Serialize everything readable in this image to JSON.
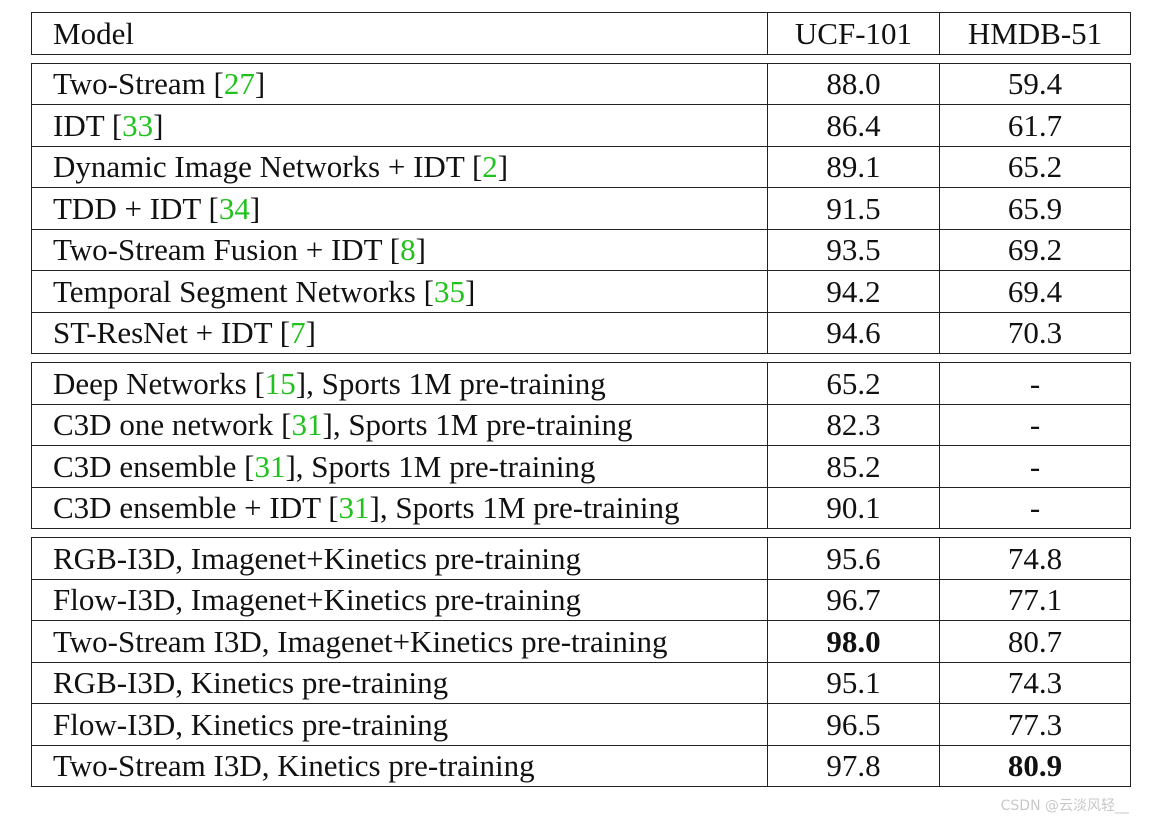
{
  "table": {
    "header": {
      "model": "Model",
      "ucf": "UCF-101",
      "hmdb": "HMDB-51"
    },
    "groups": [
      [
        {
          "model": "Two-Stream ",
          "ref": "27",
          "suffix": "",
          "ucf": "88.0",
          "hmdb": "59.4"
        },
        {
          "model": "IDT ",
          "ref": "33",
          "suffix": "",
          "ucf": "86.4",
          "hmdb": "61.7"
        },
        {
          "model": "Dynamic Image Networks + IDT ",
          "ref": "2",
          "suffix": "",
          "ucf": "89.1",
          "hmdb": "65.2"
        },
        {
          "model": "TDD + IDT ",
          "ref": "34",
          "suffix": "",
          "ucf": "91.5",
          "hmdb": "65.9"
        },
        {
          "model": "Two-Stream Fusion + IDT ",
          "ref": "8",
          "suffix": "",
          "ucf": "93.5",
          "hmdb": "69.2"
        },
        {
          "model": "Temporal Segment Networks ",
          "ref": "35",
          "suffix": "",
          "ucf": "94.2",
          "hmdb": "69.4"
        },
        {
          "model": "ST-ResNet + IDT ",
          "ref": "7",
          "suffix": "",
          "ucf": "94.6",
          "hmdb": "70.3"
        }
      ],
      [
        {
          "model": "Deep Networks ",
          "ref": "15",
          "suffix": ", Sports 1M pre-training",
          "ucf": "65.2",
          "hmdb": "-"
        },
        {
          "model": "C3D one network ",
          "ref": "31",
          "suffix": ", Sports 1M pre-training",
          "ucf": "82.3",
          "hmdb": "-"
        },
        {
          "model": "C3D ensemble ",
          "ref": "31",
          "suffix": ", Sports 1M pre-training",
          "ucf": "85.2",
          "hmdb": "-"
        },
        {
          "model": "C3D ensemble + IDT ",
          "ref": "31",
          "suffix": ", Sports 1M pre-training",
          "ucf": "90.1",
          "hmdb": "-"
        }
      ],
      [
        {
          "model": "RGB-I3D, Imagenet+Kinetics pre-training",
          "ref": "",
          "suffix": "",
          "ucf": "95.6",
          "hmdb": "74.8"
        },
        {
          "model": "Flow-I3D, Imagenet+Kinetics pre-training",
          "ref": "",
          "suffix": "",
          "ucf": "96.7",
          "hmdb": "77.1"
        },
        {
          "model": "Two-Stream I3D, Imagenet+Kinetics pre-training",
          "ref": "",
          "suffix": "",
          "ucf": "98.0",
          "hmdb": "80.7",
          "bold_ucf": true
        },
        {
          "model": "RGB-I3D, Kinetics pre-training",
          "ref": "",
          "suffix": "",
          "ucf": "95.1",
          "hmdb": "74.3"
        },
        {
          "model": "Flow-I3D, Kinetics pre-training",
          "ref": "",
          "suffix": "",
          "ucf": "96.5",
          "hmdb": "77.3"
        },
        {
          "model": "Two-Stream I3D, Kinetics pre-training",
          "ref": "",
          "suffix": "",
          "ucf": "97.8",
          "hmdb": "80.9",
          "bold_hmdb": true
        }
      ]
    ]
  },
  "colors": {
    "reference_link": "#22c21e",
    "text": "#111111",
    "watermark": "#c8c8c8"
  },
  "watermark": "CSDN @云淡风轻__"
}
